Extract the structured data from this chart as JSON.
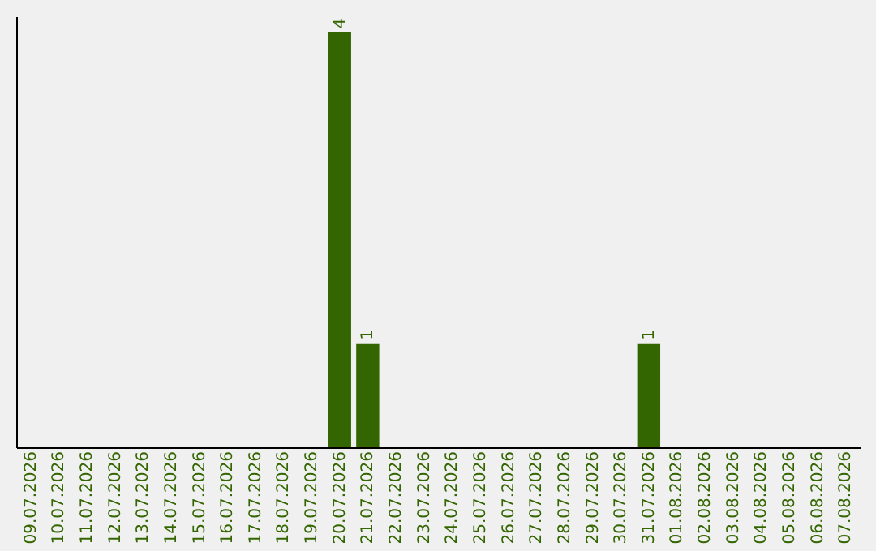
{
  "chart_data": {
    "type": "bar",
    "categories": [
      "09.07.2026",
      "10.07.2026",
      "11.07.2026",
      "12.07.2026",
      "13.07.2026",
      "14.07.2026",
      "15.07.2026",
      "16.07.2026",
      "17.07.2026",
      "18.07.2026",
      "19.07.2026",
      "20.07.2026",
      "21.07.2026",
      "22.07.2026",
      "23.07.2026",
      "24.07.2026",
      "25.07.2026",
      "26.07.2026",
      "27.07.2026",
      "28.07.2026",
      "29.07.2026",
      "30.07.2026",
      "31.07.2026",
      "01.08.2026",
      "02.08.2026",
      "03.08.2026",
      "04.08.2026",
      "05.08.2026",
      "06.08.2026",
      "07.08.2026"
    ],
    "values": [
      0,
      0,
      0,
      0,
      0,
      0,
      0,
      0,
      0,
      0,
      0,
      4,
      1,
      0,
      0,
      0,
      0,
      0,
      0,
      0,
      0,
      0,
      1,
      0,
      0,
      0,
      0,
      0,
      0,
      0
    ],
    "value_labels": [
      null,
      null,
      null,
      null,
      null,
      null,
      null,
      null,
      null,
      null,
      null,
      "4",
      "1",
      null,
      null,
      null,
      null,
      null,
      null,
      null,
      null,
      null,
      "1",
      null,
      null,
      null,
      null,
      null,
      null,
      null
    ],
    "color": "#336600",
    "ylim": [
      0,
      4.15
    ]
  }
}
